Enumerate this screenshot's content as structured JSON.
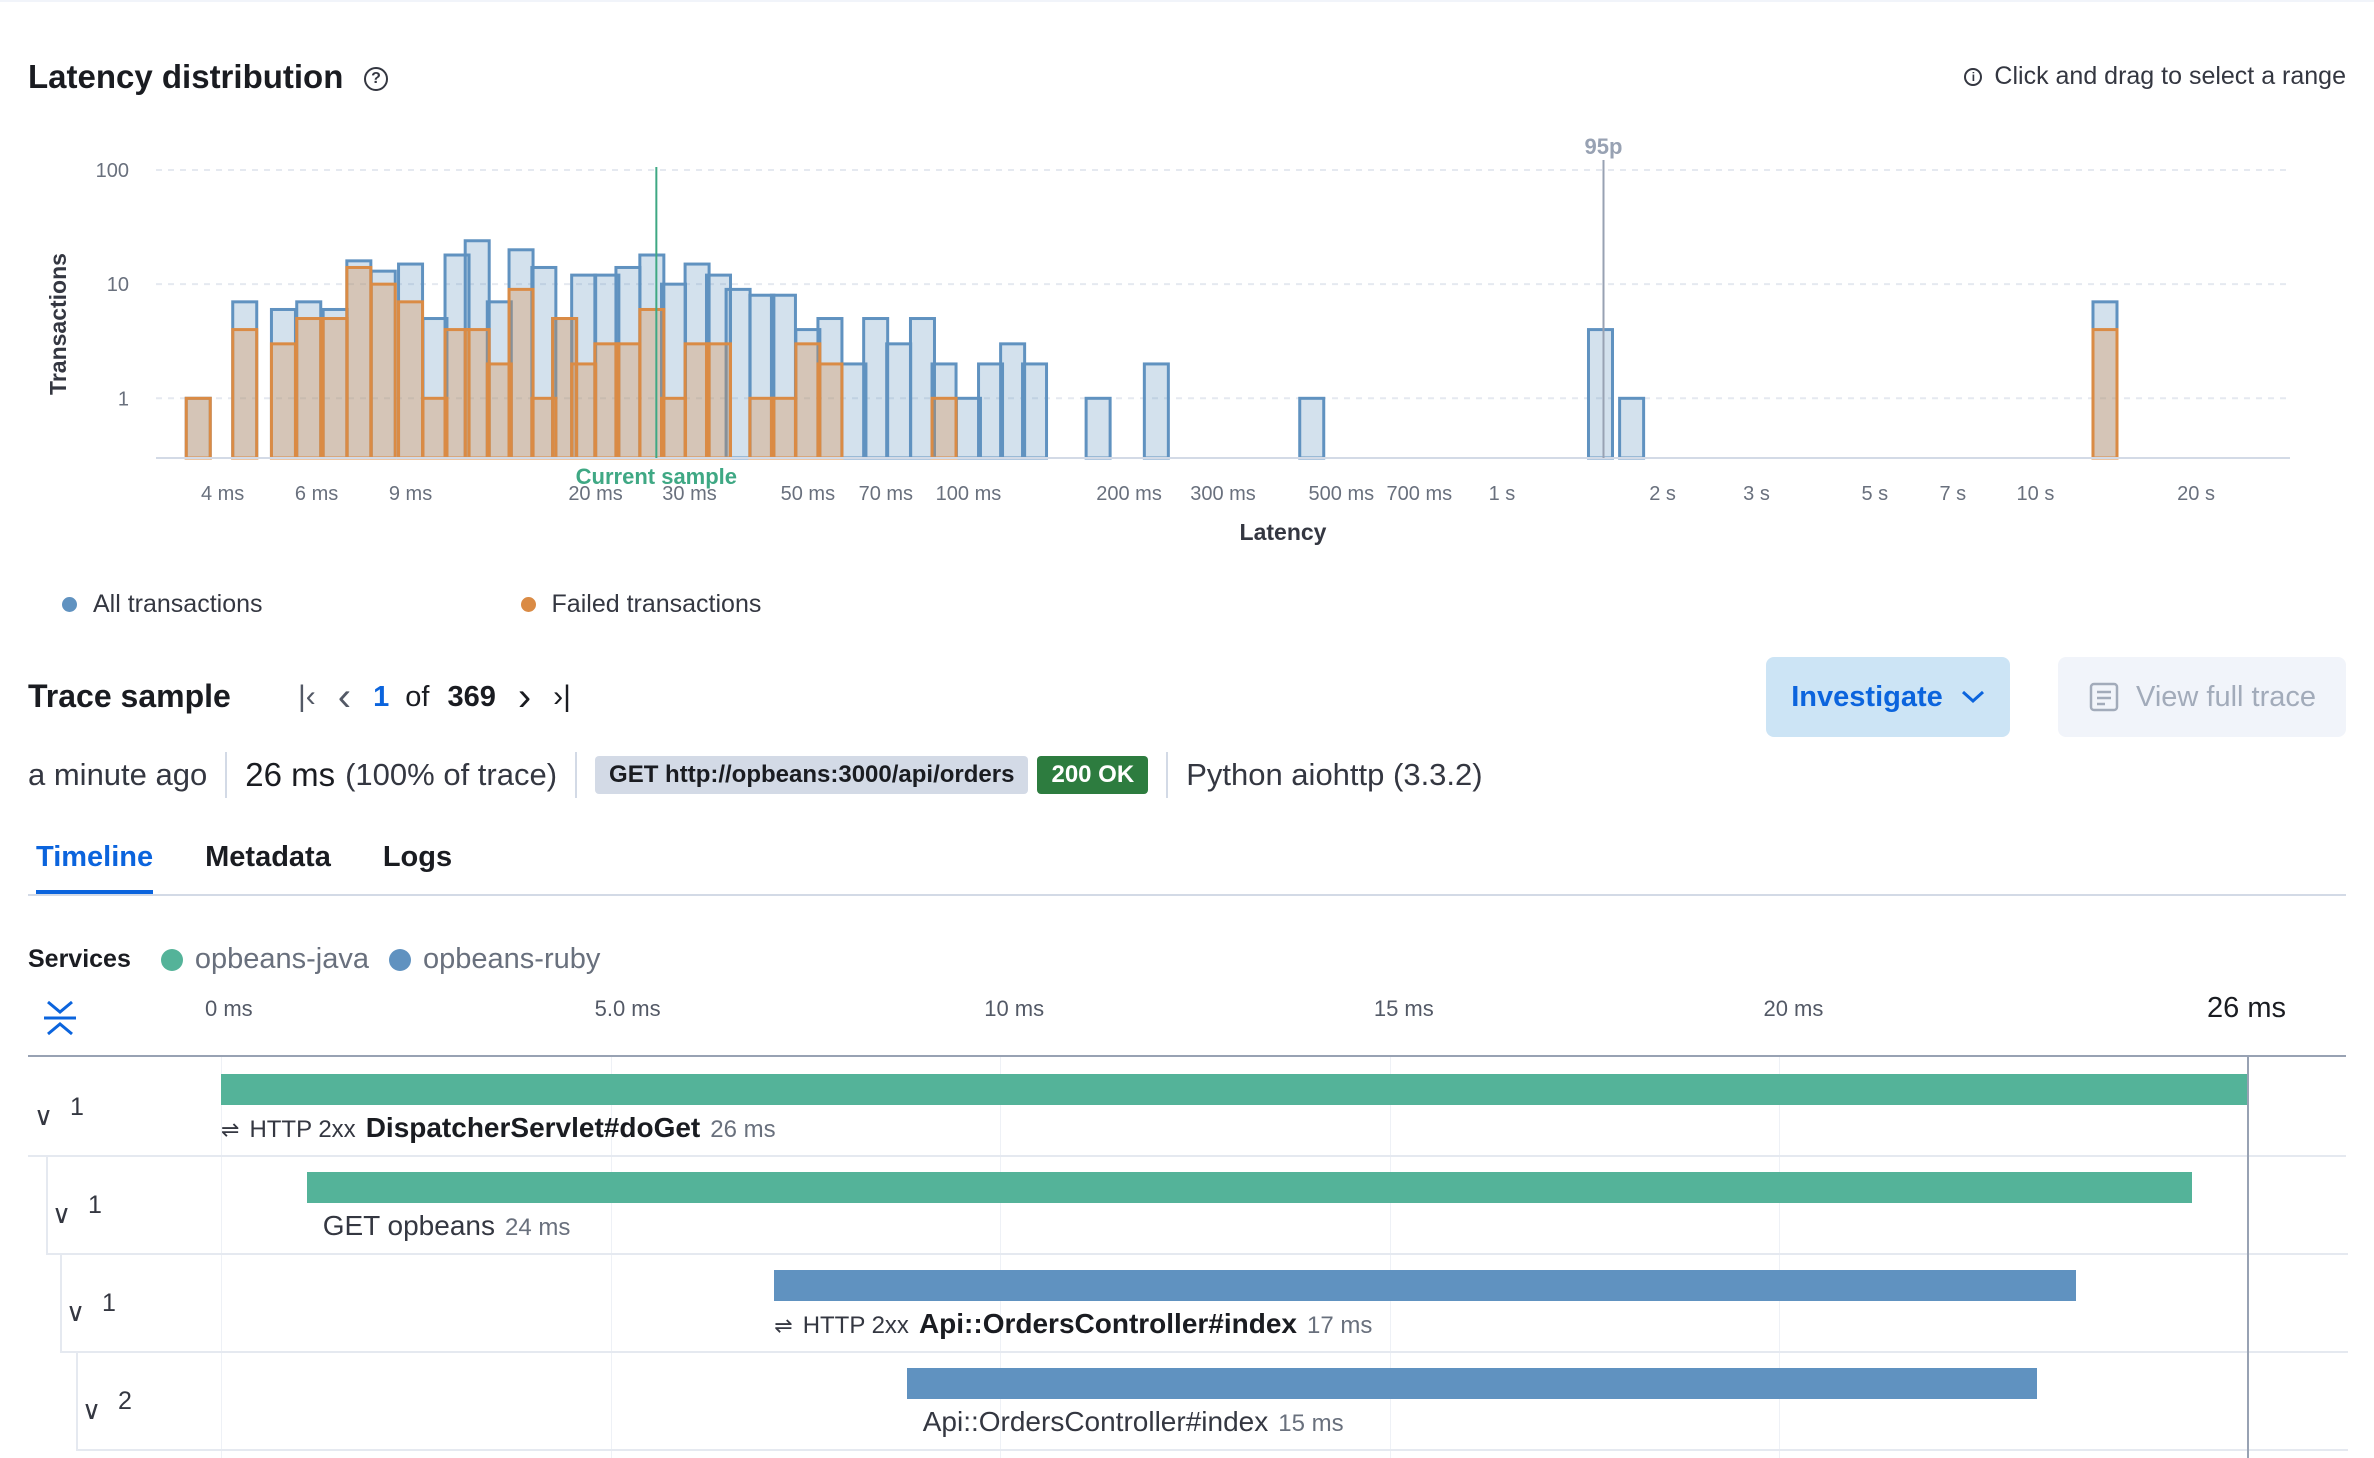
{
  "latency": {
    "title": "Latency distribution",
    "help_icon": "question-circle-icon",
    "hint_icon": "info-icon",
    "hint": "Click and drag to select a range"
  },
  "chart_data": {
    "type": "area",
    "ylabel": "Transactions",
    "xlabel": "Latency",
    "yscale": "log",
    "xscale": "log",
    "yticks": [
      "1",
      "10",
      "100"
    ],
    "ylim": [
      0.3,
      100
    ],
    "xlim_ms": [
      3,
      30000
    ],
    "xticks": [
      "4 ms",
      "6 ms",
      "9 ms",
      "20 ms",
      "30 ms",
      "50 ms",
      "70 ms",
      "100 ms",
      "200 ms",
      "300 ms",
      "500 ms",
      "700 ms",
      "1 s",
      "2 s",
      "3 s",
      "5 s",
      "7 s",
      "10 s",
      "20 s"
    ],
    "xtick_values_ms": [
      4,
      6,
      9,
      20,
      30,
      50,
      70,
      100,
      200,
      300,
      500,
      700,
      1000,
      2000,
      3000,
      5000,
      7000,
      10000,
      20000
    ],
    "annotations": [
      {
        "label": "Current sample",
        "x_ms": 26,
        "color": "#3fa884"
      },
      {
        "label": "95p",
        "x_ms": 1550,
        "color": "#98a2b3"
      }
    ],
    "grid": true,
    "legend_position": "bottom-left",
    "series": [
      {
        "name": "All transactions",
        "color": "#6092c0",
        "bins": [
          {
            "x_ms": 3.6,
            "y": 1
          },
          {
            "x_ms": 4.4,
            "y": 7
          },
          {
            "x_ms": 5.2,
            "y": 6
          },
          {
            "x_ms": 5.8,
            "y": 7
          },
          {
            "x_ms": 6.5,
            "y": 6
          },
          {
            "x_ms": 7.2,
            "y": 16
          },
          {
            "x_ms": 8.0,
            "y": 13
          },
          {
            "x_ms": 9.0,
            "y": 15
          },
          {
            "x_ms": 10.0,
            "y": 5
          },
          {
            "x_ms": 11.0,
            "y": 18
          },
          {
            "x_ms": 12.0,
            "y": 24
          },
          {
            "x_ms": 13.2,
            "y": 7
          },
          {
            "x_ms": 14.5,
            "y": 20
          },
          {
            "x_ms": 16.0,
            "y": 14
          },
          {
            "x_ms": 17.5,
            "y": 5
          },
          {
            "x_ms": 19.0,
            "y": 12
          },
          {
            "x_ms": 21.0,
            "y": 12
          },
          {
            "x_ms": 23.0,
            "y": 14
          },
          {
            "x_ms": 25.5,
            "y": 18
          },
          {
            "x_ms": 28.0,
            "y": 10
          },
          {
            "x_ms": 31.0,
            "y": 15
          },
          {
            "x_ms": 34.0,
            "y": 12
          },
          {
            "x_ms": 37.0,
            "y": 9
          },
          {
            "x_ms": 41.0,
            "y": 8
          },
          {
            "x_ms": 45.0,
            "y": 8
          },
          {
            "x_ms": 50.0,
            "y": 4
          },
          {
            "x_ms": 55.0,
            "y": 5
          },
          {
            "x_ms": 61.0,
            "y": 2
          },
          {
            "x_ms": 67.0,
            "y": 5
          },
          {
            "x_ms": 74.0,
            "y": 3
          },
          {
            "x_ms": 82.0,
            "y": 5
          },
          {
            "x_ms": 90.0,
            "y": 2
          },
          {
            "x_ms": 100.0,
            "y": 1
          },
          {
            "x_ms": 110.0,
            "y": 2
          },
          {
            "x_ms": 121.0,
            "y": 3
          },
          {
            "x_ms": 133.0,
            "y": 2
          },
          {
            "x_ms": 175.0,
            "y": 1
          },
          {
            "x_ms": 225.0,
            "y": 2
          },
          {
            "x_ms": 440.0,
            "y": 1
          },
          {
            "x_ms": 1530.0,
            "y": 4
          },
          {
            "x_ms": 1750.0,
            "y": 1
          },
          {
            "x_ms": 13500.0,
            "y": 7
          }
        ]
      },
      {
        "name": "Failed transactions",
        "color": "#da8b45",
        "bins": [
          {
            "x_ms": 3.6,
            "y": 1
          },
          {
            "x_ms": 4.4,
            "y": 4
          },
          {
            "x_ms": 5.2,
            "y": 3
          },
          {
            "x_ms": 5.8,
            "y": 5
          },
          {
            "x_ms": 6.5,
            "y": 5
          },
          {
            "x_ms": 7.2,
            "y": 14
          },
          {
            "x_ms": 8.0,
            "y": 10
          },
          {
            "x_ms": 9.0,
            "y": 7
          },
          {
            "x_ms": 10.0,
            "y": 1
          },
          {
            "x_ms": 11.0,
            "y": 4
          },
          {
            "x_ms": 12.0,
            "y": 4
          },
          {
            "x_ms": 13.2,
            "y": 2
          },
          {
            "x_ms": 14.5,
            "y": 9
          },
          {
            "x_ms": 16.0,
            "y": 1
          },
          {
            "x_ms": 17.5,
            "y": 5
          },
          {
            "x_ms": 19.0,
            "y": 2
          },
          {
            "x_ms": 21.0,
            "y": 3
          },
          {
            "x_ms": 23.0,
            "y": 3
          },
          {
            "x_ms": 25.5,
            "y": 6
          },
          {
            "x_ms": 28.0,
            "y": 1
          },
          {
            "x_ms": 31.0,
            "y": 3
          },
          {
            "x_ms": 34.0,
            "y": 3
          },
          {
            "x_ms": 41.0,
            "y": 1
          },
          {
            "x_ms": 45.0,
            "y": 1
          },
          {
            "x_ms": 50.0,
            "y": 3
          },
          {
            "x_ms": 55.0,
            "y": 2
          },
          {
            "x_ms": 90.0,
            "y": 1
          },
          {
            "x_ms": 13500.0,
            "y": 4
          }
        ]
      }
    ]
  },
  "legend": [
    {
      "label": "All transactions",
      "color": "#6092c0"
    },
    {
      "label": "Failed transactions",
      "color": "#da8b45"
    }
  ],
  "trace": {
    "title": "Trace sample",
    "current": "1",
    "of": "of",
    "total": "369",
    "investigate": "Investigate",
    "view_full_trace": "View full trace"
  },
  "summary": {
    "time_ago": "a minute ago",
    "duration": "26 ms",
    "duration_pct": "(100% of trace)",
    "request": "GET http://opbeans:3000/api/orders",
    "status": "200 OK",
    "agent": "Python aiohttp (3.3.2)"
  },
  "tabs": [
    {
      "label": "Timeline",
      "active": true
    },
    {
      "label": "Metadata",
      "active": false
    },
    {
      "label": "Logs",
      "active": false
    }
  ],
  "services": {
    "label": "Services",
    "items": [
      {
        "name": "opbeans-java",
        "color": "#54b399"
      },
      {
        "name": "opbeans-ruby",
        "color": "#6092c0"
      }
    ]
  },
  "timeline": {
    "ticks": [
      "0 ms",
      "5.0 ms",
      "10 ms",
      "15 ms",
      "20 ms"
    ],
    "tick_values_ms": [
      0,
      5,
      10,
      15,
      20
    ],
    "end": "26 ms",
    "end_value_ms": 26,
    "rows": [
      {
        "count": "1",
        "status": "HTTP 2xx",
        "name": "DispatcherServlet#doGet",
        "bold": true,
        "duration": "26 ms",
        "start_ms": 0,
        "dur_ms": 26,
        "color": "#54b399"
      },
      {
        "count": "1",
        "status": "",
        "name": "GET opbeans",
        "bold": false,
        "duration": "24 ms",
        "start_ms": 1.1,
        "dur_ms": 24.2,
        "color": "#54b399"
      },
      {
        "count": "1",
        "status": "HTTP 2xx",
        "name": "Api::OrdersController#index",
        "bold": true,
        "duration": "17 ms",
        "start_ms": 7.1,
        "dur_ms": 16.7,
        "color": "#6092c0"
      },
      {
        "count": "2",
        "status": "",
        "name": "Api::OrdersController#index",
        "bold": false,
        "duration": "15 ms",
        "start_ms": 8.8,
        "dur_ms": 14.5,
        "color": "#6092c0"
      }
    ]
  }
}
